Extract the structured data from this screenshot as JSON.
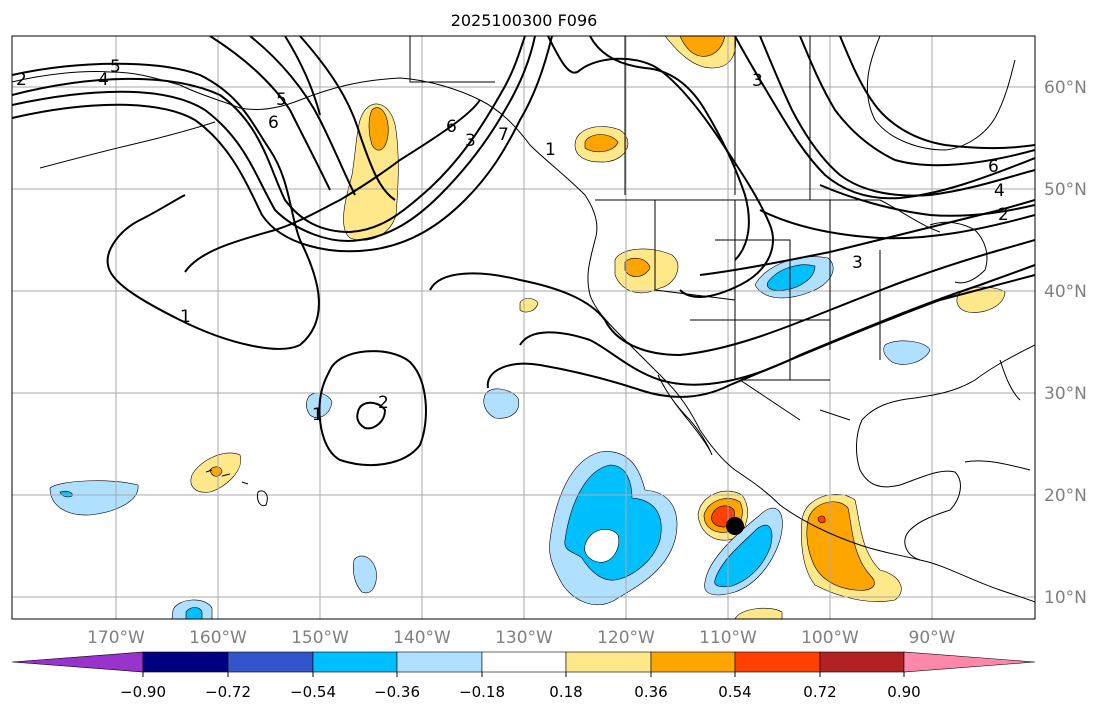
{
  "title": "2025100300 F096",
  "lon_labels": [
    "170°W",
    "160°W",
    "150°W",
    "140°W",
    "130°W",
    "120°W",
    "110°W",
    "100°W",
    "90°W"
  ],
  "lat_labels": [
    "60°N",
    "50°N",
    "40°N",
    "30°N",
    "20°N",
    "10°N"
  ],
  "contour_labels": [
    "1",
    "2",
    "3",
    "4",
    "5",
    "6",
    "1",
    "2",
    "3",
    "4",
    "6",
    "5",
    "3",
    "6",
    "7",
    "2",
    "1"
  ],
  "colorbar": {
    "ticks": [
      "−0.90",
      "−0.72",
      "−0.54",
      "−0.36",
      "−0.18",
      "0.18",
      "0.36",
      "0.54",
      "0.72",
      "0.90"
    ],
    "colors": [
      "#9933cc",
      "#000080",
      "#3355cc",
      "#00bfff",
      "#b0e0ff",
      "#ffffff",
      "#ffe88a",
      "#ffa500",
      "#ff4000",
      "#b22222",
      "#ff88aa"
    ]
  },
  "colors": {
    "light_blue": "#b0e0ff",
    "blue": "#00bfff",
    "light_yellow": "#ffe88a",
    "orange": "#ffa500",
    "red_orange": "#ff4000",
    "grid": "#aaaaaa",
    "axis_text": "#808080"
  },
  "marker": "storm-center-dot"
}
